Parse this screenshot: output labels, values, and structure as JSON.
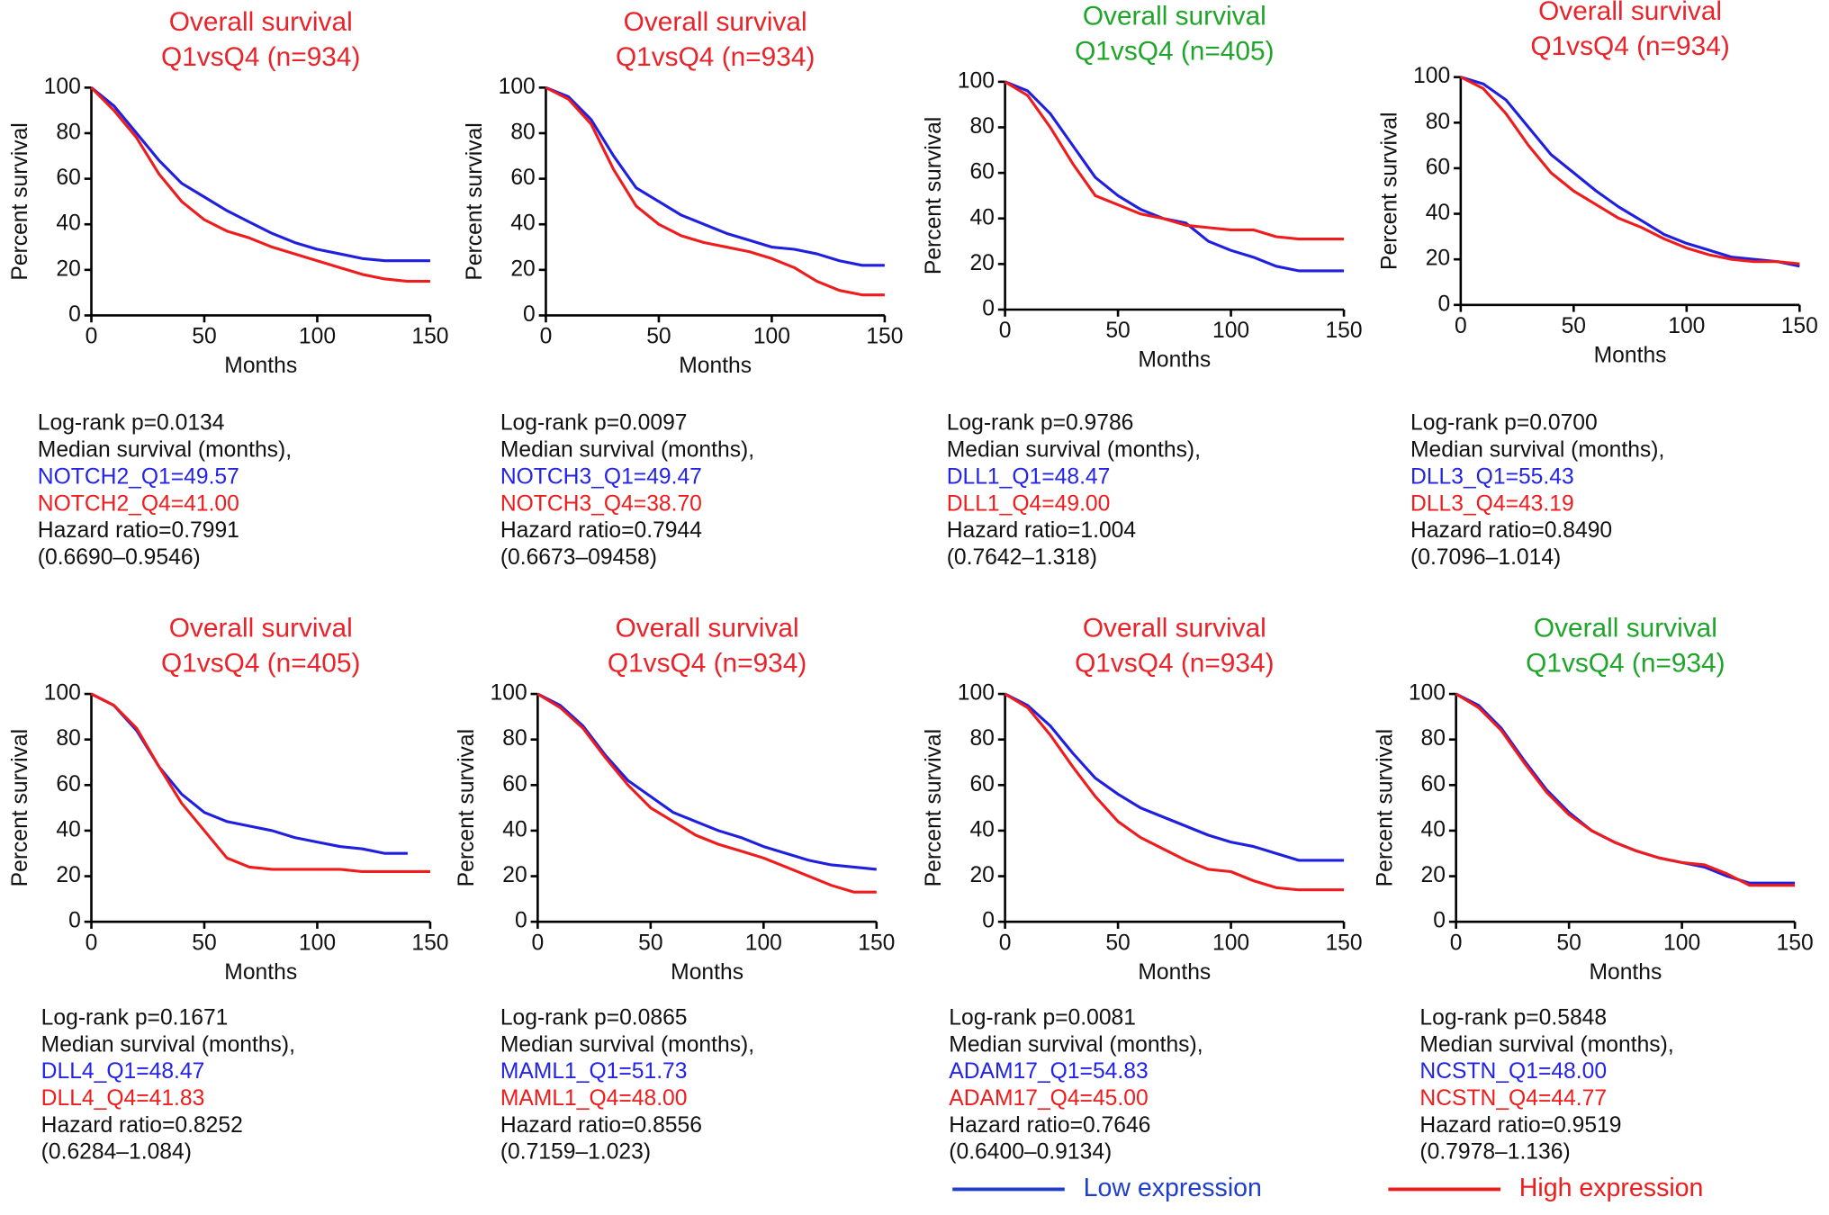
{
  "chart_data": [
    {
      "type": "line",
      "title": "Overall survival",
      "subtitle": "Q1vsQ4 (n=934)",
      "title_color": "#e8232a",
      "xlabel": "Months",
      "ylabel": "Percent survival",
      "xlim": [
        0,
        150
      ],
      "xticks": [
        0,
        50,
        100,
        150
      ],
      "ylim": [
        0,
        100
      ],
      "yticks": [
        0,
        20,
        40,
        60,
        80,
        100
      ],
      "x": [
        0,
        10,
        20,
        30,
        40,
        50,
        60,
        70,
        80,
        90,
        100,
        110,
        120,
        130,
        140,
        150
      ],
      "series": [
        {
          "color": "#1f1fe0",
          "values": [
            100,
            92,
            80,
            68,
            58,
            52,
            46,
            41,
            36,
            32,
            29,
            27,
            25,
            24,
            24,
            24
          ]
        },
        {
          "color": "#ee1c1c",
          "values": [
            100,
            90,
            78,
            62,
            50,
            42,
            37,
            34,
            30,
            27,
            24,
            21,
            18,
            16,
            15,
            15
          ]
        }
      ],
      "annotations": [
        {
          "text": "Log-rank p=0.0134",
          "color": "#111111"
        },
        {
          "text": "Median survival (months),",
          "color": "#111111"
        },
        {
          "text": "NOTCH2_Q1=49.57",
          "color": "#2323e6"
        },
        {
          "text": "NOTCH2_Q4=41.00",
          "color": "#ee1c1c"
        },
        {
          "text": "Hazard ratio=0.7991",
          "color": "#111111"
        },
        {
          "text": "(0.6690–0.9546)",
          "color": "#111111"
        }
      ]
    },
    {
      "type": "line",
      "title": "Overall survival",
      "subtitle": "Q1vsQ4 (n=934)",
      "title_color": "#e8232a",
      "xlabel": "Months",
      "ylabel": "Percent survival",
      "xlim": [
        0,
        150
      ],
      "xticks": [
        0,
        50,
        100,
        150
      ],
      "ylim": [
        0,
        100
      ],
      "yticks": [
        0,
        20,
        40,
        60,
        80,
        100
      ],
      "x": [
        0,
        10,
        20,
        30,
        40,
        50,
        60,
        70,
        80,
        90,
        100,
        110,
        120,
        130,
        140,
        150
      ],
      "series": [
        {
          "color": "#1f1fe0",
          "values": [
            100,
            96,
            86,
            70,
            56,
            50,
            44,
            40,
            36,
            33,
            30,
            29,
            27,
            24,
            22,
            22
          ]
        },
        {
          "color": "#ee1c1c",
          "values": [
            100,
            95,
            84,
            64,
            48,
            40,
            35,
            32,
            30,
            28,
            25,
            21,
            15,
            11,
            9,
            9
          ]
        }
      ],
      "annotations": [
        {
          "text": "Log-rank p=0.0097",
          "color": "#111111"
        },
        {
          "text": "Median survival (months),",
          "color": "#111111"
        },
        {
          "text": "NOTCH3_Q1=49.47",
          "color": "#2323e6"
        },
        {
          "text": "NOTCH3_Q4=38.70",
          "color": "#ee1c1c"
        },
        {
          "text": "Hazard ratio=0.7944",
          "color": "#111111"
        },
        {
          "text": "(0.6673–09458)",
          "color": "#111111"
        }
      ]
    },
    {
      "type": "line",
      "title": "Overall survival",
      "subtitle": "Q1vsQ4 (n=405)",
      "title_color": "#1fa52a",
      "xlabel": "Months",
      "ylabel": "Percent survival",
      "xlim": [
        0,
        150
      ],
      "xticks": [
        0,
        50,
        100,
        150
      ],
      "ylim": [
        0,
        100
      ],
      "yticks": [
        0,
        20,
        40,
        60,
        80,
        100
      ],
      "x": [
        0,
        10,
        20,
        30,
        40,
        50,
        60,
        70,
        80,
        90,
        100,
        110,
        120,
        130,
        140,
        150
      ],
      "series": [
        {
          "color": "#1f1fe0",
          "values": [
            100,
            96,
            86,
            72,
            58,
            50,
            44,
            40,
            38,
            30,
            26,
            23,
            19,
            17,
            17,
            17
          ]
        },
        {
          "color": "#ee1c1c",
          "values": [
            100,
            94,
            80,
            64,
            50,
            46,
            42,
            40,
            37,
            36,
            35,
            35,
            32,
            31,
            31,
            31
          ]
        }
      ],
      "annotations": [
        {
          "text": "Log-rank p=0.9786",
          "color": "#111111"
        },
        {
          "text": "Median survival (months),",
          "color": "#111111"
        },
        {
          "text": "DLL1_Q1=48.47",
          "color": "#2323e6"
        },
        {
          "text": "DLL1_Q4=49.00",
          "color": "#ee1c1c"
        },
        {
          "text": "Hazard ratio=1.004",
          "color": "#111111"
        },
        {
          "text": "(0.7642–1.318)",
          "color": "#111111"
        }
      ]
    },
    {
      "type": "line",
      "title": "Overall survival",
      "subtitle": "Q1vsQ4 (n=934)",
      "title_color": "#e8232a",
      "xlabel": "Months",
      "ylabel": "Percent survival",
      "xlim": [
        0,
        150
      ],
      "xticks": [
        0,
        50,
        100,
        150
      ],
      "ylim": [
        0,
        100
      ],
      "yticks": [
        0,
        20,
        40,
        60,
        80,
        100
      ],
      "x": [
        0,
        10,
        20,
        30,
        40,
        50,
        60,
        70,
        80,
        90,
        100,
        110,
        120,
        130,
        140,
        150
      ],
      "series": [
        {
          "color": "#1f1fe0",
          "values": [
            100,
            97,
            90,
            78,
            66,
            58,
            50,
            43,
            37,
            31,
            27,
            24,
            21,
            20,
            19,
            17
          ]
        },
        {
          "color": "#ee1c1c",
          "values": [
            100,
            95,
            84,
            70,
            58,
            50,
            44,
            38,
            34,
            29,
            25,
            22,
            20,
            19,
            19,
            18
          ]
        }
      ],
      "annotations": [
        {
          "text": "Log-rank p=0.0700",
          "color": "#111111"
        },
        {
          "text": "Median survival (months),",
          "color": "#111111"
        },
        {
          "text": "DLL3_Q1=55.43",
          "color": "#2323e6"
        },
        {
          "text": "DLL3_Q4=43.19",
          "color": "#ee1c1c"
        },
        {
          "text": "Hazard ratio=0.8490",
          "color": "#111111"
        },
        {
          "text": "(0.7096–1.014)",
          "color": "#111111"
        }
      ]
    },
    {
      "type": "line",
      "title": "Overall survival",
      "subtitle": "Q1vsQ4 (n=405)",
      "title_color": "#e8232a",
      "xlabel": "Months",
      "ylabel": "Percent survival",
      "xlim": [
        0,
        150
      ],
      "xticks": [
        0,
        50,
        100,
        150
      ],
      "ylim": [
        0,
        100
      ],
      "yticks": [
        0,
        20,
        40,
        60,
        80,
        100
      ],
      "x": [
        0,
        10,
        20,
        30,
        40,
        50,
        60,
        70,
        80,
        90,
        100,
        110,
        120,
        130,
        140,
        150
      ],
      "series": [
        {
          "color": "#1f1fe0",
          "values": [
            100,
            95,
            84,
            68,
            56,
            48,
            44,
            42,
            40,
            37,
            35,
            33,
            32,
            30,
            30,
            null
          ]
        },
        {
          "color": "#ee1c1c",
          "values": [
            100,
            95,
            85,
            68,
            52,
            40,
            28,
            24,
            23,
            23,
            23,
            23,
            22,
            22,
            22,
            22
          ]
        }
      ],
      "annotations": [
        {
          "text": "Log-rank p=0.1671",
          "color": "#111111"
        },
        {
          "text": "Median survival (months),",
          "color": "#111111"
        },
        {
          "text": "DLL4_Q1=48.47",
          "color": "#2323e6"
        },
        {
          "text": "DLL4_Q4=41.83",
          "color": "#ee1c1c"
        },
        {
          "text": "Hazard ratio=0.8252",
          "color": "#111111"
        },
        {
          "text": "(0.6284–1.084)",
          "color": "#111111"
        }
      ]
    },
    {
      "type": "line",
      "title": "Overall survival",
      "subtitle": "Q1vsQ4 (n=934)",
      "title_color": "#e8232a",
      "xlabel": "Months",
      "ylabel": "Percent survival",
      "xlim": [
        0,
        150
      ],
      "xticks": [
        0,
        50,
        100,
        150
      ],
      "ylim": [
        0,
        100
      ],
      "yticks": [
        0,
        20,
        40,
        60,
        80,
        100
      ],
      "x": [
        0,
        10,
        20,
        30,
        40,
        50,
        60,
        70,
        80,
        90,
        100,
        110,
        120,
        130,
        140,
        150
      ],
      "series": [
        {
          "color": "#1f1fe0",
          "values": [
            100,
            95,
            86,
            73,
            62,
            55,
            48,
            44,
            40,
            37,
            33,
            30,
            27,
            25,
            24,
            23
          ]
        },
        {
          "color": "#ee1c1c",
          "values": [
            100,
            94,
            85,
            72,
            60,
            50,
            44,
            38,
            34,
            31,
            28,
            24,
            20,
            16,
            13,
            13
          ]
        }
      ],
      "annotations": [
        {
          "text": "Log-rank p=0.0865",
          "color": "#111111"
        },
        {
          "text": "Median survival (months),",
          "color": "#111111"
        },
        {
          "text": "MAML1_Q1=51.73",
          "color": "#2323e6"
        },
        {
          "text": "MAML1_Q4=48.00",
          "color": "#ee1c1c"
        },
        {
          "text": "Hazard ratio=0.8556",
          "color": "#111111"
        },
        {
          "text": "(0.7159–1.023)",
          "color": "#111111"
        }
      ]
    },
    {
      "type": "line",
      "title": "Overall survival",
      "subtitle": "Q1vsQ4 (n=934)",
      "title_color": "#e8232a",
      "xlabel": "Months",
      "ylabel": "Percent survival",
      "xlim": [
        0,
        150
      ],
      "xticks": [
        0,
        50,
        100,
        150
      ],
      "ylim": [
        0,
        100
      ],
      "yticks": [
        0,
        20,
        40,
        60,
        80,
        100
      ],
      "x": [
        0,
        10,
        20,
        30,
        40,
        50,
        60,
        70,
        80,
        90,
        100,
        110,
        120,
        130,
        140,
        150
      ],
      "series": [
        {
          "color": "#1f1fe0",
          "values": [
            100,
            95,
            86,
            74,
            63,
            56,
            50,
            46,
            42,
            38,
            35,
            33,
            30,
            27,
            27,
            27
          ]
        },
        {
          "color": "#ee1c1c",
          "values": [
            100,
            94,
            82,
            68,
            55,
            44,
            37,
            32,
            27,
            23,
            22,
            18,
            15,
            14,
            14,
            14
          ]
        }
      ],
      "annotations": [
        {
          "text": "Log-rank p=0.0081",
          "color": "#111111"
        },
        {
          "text": "Median survival (months),",
          "color": "#111111"
        },
        {
          "text": "ADAM17_Q1=54.83",
          "color": "#2323e6"
        },
        {
          "text": "ADAM17_Q4=45.00",
          "color": "#ee1c1c"
        },
        {
          "text": "Hazard ratio=0.7646",
          "color": "#111111"
        },
        {
          "text": "(0.6400–0.9134)",
          "color": "#111111"
        }
      ]
    },
    {
      "type": "line",
      "title": "Overall survival",
      "subtitle": "Q1vsQ4 (n=934)",
      "title_color": "#1fa52a",
      "xlabel": "Months",
      "ylabel": "Percent survival",
      "xlim": [
        0,
        150
      ],
      "xticks": [
        0,
        50,
        100,
        150
      ],
      "ylim": [
        0,
        100
      ],
      "yticks": [
        0,
        20,
        40,
        60,
        80,
        100
      ],
      "x": [
        0,
        10,
        20,
        30,
        40,
        50,
        60,
        70,
        80,
        90,
        100,
        110,
        120,
        130,
        140,
        150
      ],
      "series": [
        {
          "color": "#1f1fe0",
          "values": [
            100,
            95,
            85,
            71,
            58,
            48,
            40,
            35,
            31,
            28,
            26,
            24,
            20,
            17,
            17,
            17
          ]
        },
        {
          "color": "#ee1c1c",
          "values": [
            100,
            94,
            84,
            70,
            57,
            47,
            40,
            35,
            31,
            28,
            26,
            25,
            21,
            16,
            16,
            16
          ]
        }
      ],
      "annotations": [
        {
          "text": "Log-rank p=0.5848",
          "color": "#111111"
        },
        {
          "text": "Median survival (months),",
          "color": "#111111"
        },
        {
          "text": "NCSTN_Q1=48.00",
          "color": "#2323e6"
        },
        {
          "text": "NCSTN_Q4=44.77",
          "color": "#ee1c1c"
        },
        {
          "text": "Hazard ratio=0.9519",
          "color": "#111111"
        },
        {
          "text": "(0.7978–1.136)",
          "color": "#111111"
        }
      ]
    }
  ],
  "legend": [
    {
      "name": "Low expression",
      "color": "#1f3fc8"
    },
    {
      "name": "High expression",
      "color": "#ee1c1c"
    }
  ]
}
